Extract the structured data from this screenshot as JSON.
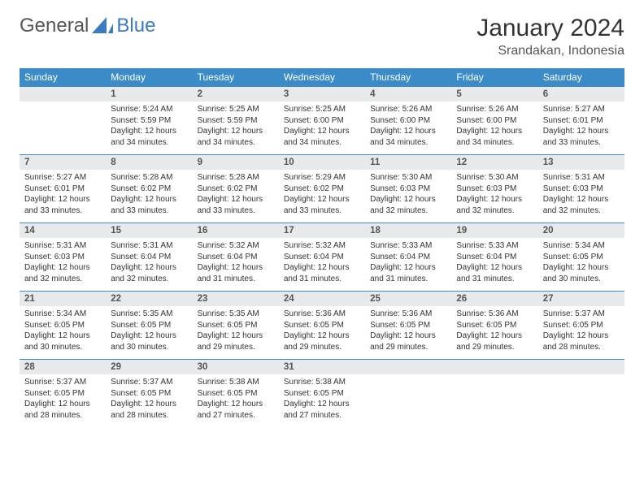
{
  "brand": {
    "part1": "General",
    "part2": "Blue"
  },
  "title": "January 2024",
  "location": "Srandakan, Indonesia",
  "colors": {
    "header_bg": "#3b8bc8",
    "header_text": "#ffffff",
    "daynum_bg": "#e8e9eb",
    "border": "#3b8bc8",
    "text": "#333333",
    "brand_blue": "#3b7bbf"
  },
  "day_labels": [
    "Sunday",
    "Monday",
    "Tuesday",
    "Wednesday",
    "Thursday",
    "Friday",
    "Saturday"
  ],
  "weeks": [
    [
      {
        "n": "",
        "sr": "",
        "ss": "",
        "dl": ""
      },
      {
        "n": "1",
        "sr": "Sunrise: 5:24 AM",
        "ss": "Sunset: 5:59 PM",
        "dl": "Daylight: 12 hours and 34 minutes."
      },
      {
        "n": "2",
        "sr": "Sunrise: 5:25 AM",
        "ss": "Sunset: 5:59 PM",
        "dl": "Daylight: 12 hours and 34 minutes."
      },
      {
        "n": "3",
        "sr": "Sunrise: 5:25 AM",
        "ss": "Sunset: 6:00 PM",
        "dl": "Daylight: 12 hours and 34 minutes."
      },
      {
        "n": "4",
        "sr": "Sunrise: 5:26 AM",
        "ss": "Sunset: 6:00 PM",
        "dl": "Daylight: 12 hours and 34 minutes."
      },
      {
        "n": "5",
        "sr": "Sunrise: 5:26 AM",
        "ss": "Sunset: 6:00 PM",
        "dl": "Daylight: 12 hours and 34 minutes."
      },
      {
        "n": "6",
        "sr": "Sunrise: 5:27 AM",
        "ss": "Sunset: 6:01 PM",
        "dl": "Daylight: 12 hours and 33 minutes."
      }
    ],
    [
      {
        "n": "7",
        "sr": "Sunrise: 5:27 AM",
        "ss": "Sunset: 6:01 PM",
        "dl": "Daylight: 12 hours and 33 minutes."
      },
      {
        "n": "8",
        "sr": "Sunrise: 5:28 AM",
        "ss": "Sunset: 6:02 PM",
        "dl": "Daylight: 12 hours and 33 minutes."
      },
      {
        "n": "9",
        "sr": "Sunrise: 5:28 AM",
        "ss": "Sunset: 6:02 PM",
        "dl": "Daylight: 12 hours and 33 minutes."
      },
      {
        "n": "10",
        "sr": "Sunrise: 5:29 AM",
        "ss": "Sunset: 6:02 PM",
        "dl": "Daylight: 12 hours and 33 minutes."
      },
      {
        "n": "11",
        "sr": "Sunrise: 5:30 AM",
        "ss": "Sunset: 6:03 PM",
        "dl": "Daylight: 12 hours and 32 minutes."
      },
      {
        "n": "12",
        "sr": "Sunrise: 5:30 AM",
        "ss": "Sunset: 6:03 PM",
        "dl": "Daylight: 12 hours and 32 minutes."
      },
      {
        "n": "13",
        "sr": "Sunrise: 5:31 AM",
        "ss": "Sunset: 6:03 PM",
        "dl": "Daylight: 12 hours and 32 minutes."
      }
    ],
    [
      {
        "n": "14",
        "sr": "Sunrise: 5:31 AM",
        "ss": "Sunset: 6:03 PM",
        "dl": "Daylight: 12 hours and 32 minutes."
      },
      {
        "n": "15",
        "sr": "Sunrise: 5:31 AM",
        "ss": "Sunset: 6:04 PM",
        "dl": "Daylight: 12 hours and 32 minutes."
      },
      {
        "n": "16",
        "sr": "Sunrise: 5:32 AM",
        "ss": "Sunset: 6:04 PM",
        "dl": "Daylight: 12 hours and 31 minutes."
      },
      {
        "n": "17",
        "sr": "Sunrise: 5:32 AM",
        "ss": "Sunset: 6:04 PM",
        "dl": "Daylight: 12 hours and 31 minutes."
      },
      {
        "n": "18",
        "sr": "Sunrise: 5:33 AM",
        "ss": "Sunset: 6:04 PM",
        "dl": "Daylight: 12 hours and 31 minutes."
      },
      {
        "n": "19",
        "sr": "Sunrise: 5:33 AM",
        "ss": "Sunset: 6:04 PM",
        "dl": "Daylight: 12 hours and 31 minutes."
      },
      {
        "n": "20",
        "sr": "Sunrise: 5:34 AM",
        "ss": "Sunset: 6:05 PM",
        "dl": "Daylight: 12 hours and 30 minutes."
      }
    ],
    [
      {
        "n": "21",
        "sr": "Sunrise: 5:34 AM",
        "ss": "Sunset: 6:05 PM",
        "dl": "Daylight: 12 hours and 30 minutes."
      },
      {
        "n": "22",
        "sr": "Sunrise: 5:35 AM",
        "ss": "Sunset: 6:05 PM",
        "dl": "Daylight: 12 hours and 30 minutes."
      },
      {
        "n": "23",
        "sr": "Sunrise: 5:35 AM",
        "ss": "Sunset: 6:05 PM",
        "dl": "Daylight: 12 hours and 29 minutes."
      },
      {
        "n": "24",
        "sr": "Sunrise: 5:36 AM",
        "ss": "Sunset: 6:05 PM",
        "dl": "Daylight: 12 hours and 29 minutes."
      },
      {
        "n": "25",
        "sr": "Sunrise: 5:36 AM",
        "ss": "Sunset: 6:05 PM",
        "dl": "Daylight: 12 hours and 29 minutes."
      },
      {
        "n": "26",
        "sr": "Sunrise: 5:36 AM",
        "ss": "Sunset: 6:05 PM",
        "dl": "Daylight: 12 hours and 29 minutes."
      },
      {
        "n": "27",
        "sr": "Sunrise: 5:37 AM",
        "ss": "Sunset: 6:05 PM",
        "dl": "Daylight: 12 hours and 28 minutes."
      }
    ],
    [
      {
        "n": "28",
        "sr": "Sunrise: 5:37 AM",
        "ss": "Sunset: 6:05 PM",
        "dl": "Daylight: 12 hours and 28 minutes."
      },
      {
        "n": "29",
        "sr": "Sunrise: 5:37 AM",
        "ss": "Sunset: 6:05 PM",
        "dl": "Daylight: 12 hours and 28 minutes."
      },
      {
        "n": "30",
        "sr": "Sunrise: 5:38 AM",
        "ss": "Sunset: 6:05 PM",
        "dl": "Daylight: 12 hours and 27 minutes."
      },
      {
        "n": "31",
        "sr": "Sunrise: 5:38 AM",
        "ss": "Sunset: 6:05 PM",
        "dl": "Daylight: 12 hours and 27 minutes."
      },
      {
        "n": "",
        "sr": "",
        "ss": "",
        "dl": ""
      },
      {
        "n": "",
        "sr": "",
        "ss": "",
        "dl": ""
      },
      {
        "n": "",
        "sr": "",
        "ss": "",
        "dl": ""
      }
    ]
  ]
}
